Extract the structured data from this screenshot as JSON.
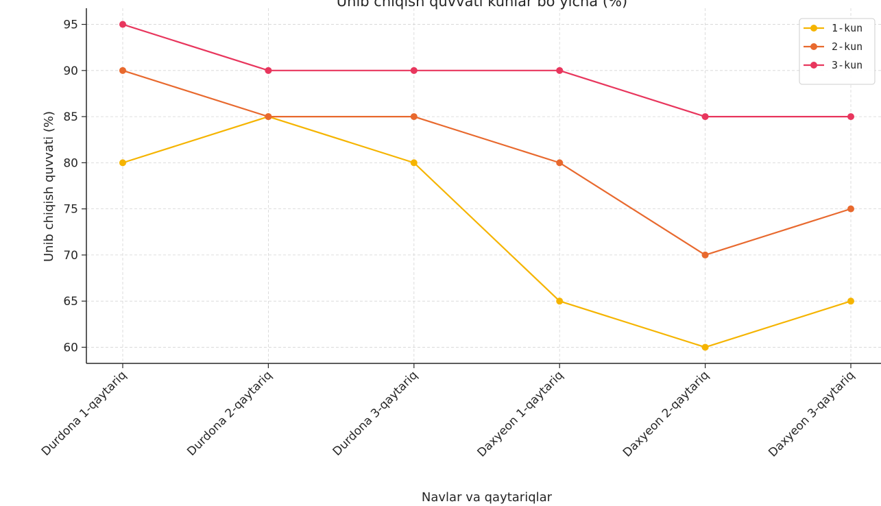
{
  "chart_data": {
    "type": "line",
    "title": "Unib chiqish quvvati kunlar bo‘yicha (%)",
    "xlabel": "Navlar va qaytariqlar",
    "ylabel": "Unib chiqish quvvati (%)",
    "categories": [
      "Durdona 1-qaytariq",
      "Durdona 2-qaytariq",
      "Durdona 3-qaytariq",
      "Daxyeon 1-qaytariq",
      "Daxyeon 2-qaytariq",
      "Daxyeon 3-qaytariq"
    ],
    "series": [
      {
        "name": "1-kun",
        "color": "#F5B400",
        "values": [
          80,
          85,
          80,
          65,
          60,
          65
        ]
      },
      {
        "name": "2-kun",
        "color": "#E8692E",
        "values": [
          90,
          85,
          85,
          80,
          70,
          75
        ]
      },
      {
        "name": "3-kun",
        "color": "#E8365D",
        "values": [
          95,
          90,
          90,
          90,
          85,
          85
        ]
      }
    ],
    "yticks": [
      60,
      65,
      70,
      75,
      80,
      85,
      90,
      95
    ],
    "ylim": [
      58.25,
      96.75
    ],
    "grid": true,
    "legend_position": "top-right"
  }
}
